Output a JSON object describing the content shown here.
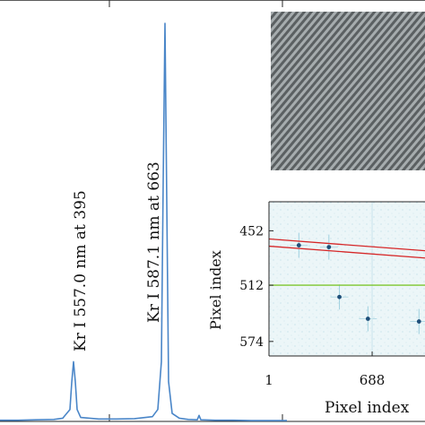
{
  "chart_data": [
    {
      "type": "line",
      "title": "",
      "xlabel": "",
      "ylabel": "",
      "series": [
        {
          "name": "",
          "color": "#4a86c8"
        }
      ],
      "x": [
        0,
        20,
        40,
        60,
        70,
        78,
        80,
        82,
        84,
        86,
        90,
        110,
        130,
        150,
        170,
        176,
        180,
        182,
        184,
        186,
        188,
        192,
        200,
        210,
        220,
        222,
        224,
        240,
        260,
        280,
        300,
        320
      ],
      "y": [
        0.003,
        0.003,
        0.004,
        0.005,
        0.008,
        0.03,
        0.098,
        0.15,
        0.1,
        0.03,
        0.01,
        0.006,
        0.006,
        0.007,
        0.012,
        0.03,
        0.15,
        0.6,
        1.0,
        0.55,
        0.1,
        0.02,
        0.008,
        0.005,
        0.004,
        0.015,
        0.004,
        0.003,
        0.003,
        0.002,
        0.002,
        0.002
      ],
      "annotations": [
        {
          "text": "Kr I 557.0 nm at 395"
        },
        {
          "text": "Kr I 587.1 nm at 663"
        }
      ],
      "grid": false
    },
    {
      "type": "heatmap",
      "title": "",
      "xlabel": "Pixel index",
      "ylabel": "Pixel index",
      "x_ticks": [
        "1",
        "688"
      ],
      "y_ticks": [
        "452",
        "512",
        "574"
      ],
      "xlim": [
        1,
        1040
      ],
      "ylim": [
        420,
        590
      ],
      "overlays": [
        {
          "kind": "line",
          "color": "#d62728",
          "x": [
            1,
            1040
          ],
          "y": [
            461,
            474
          ]
        },
        {
          "kind": "line",
          "color": "#d62728",
          "x": [
            1,
            1040
          ],
          "y": [
            469,
            482
          ]
        },
        {
          "kind": "line",
          "color": "#7cc52e",
          "x": [
            1,
            1040
          ],
          "y": [
            512,
            512
          ]
        }
      ],
      "spots": [
        {
          "x": 200,
          "y": 468
        },
        {
          "x": 400,
          "y": 470
        },
        {
          "x": 470,
          "y": 525
        },
        {
          "x": 660,
          "y": 549
        },
        {
          "x": 1000,
          "y": 552
        }
      ]
    }
  ]
}
